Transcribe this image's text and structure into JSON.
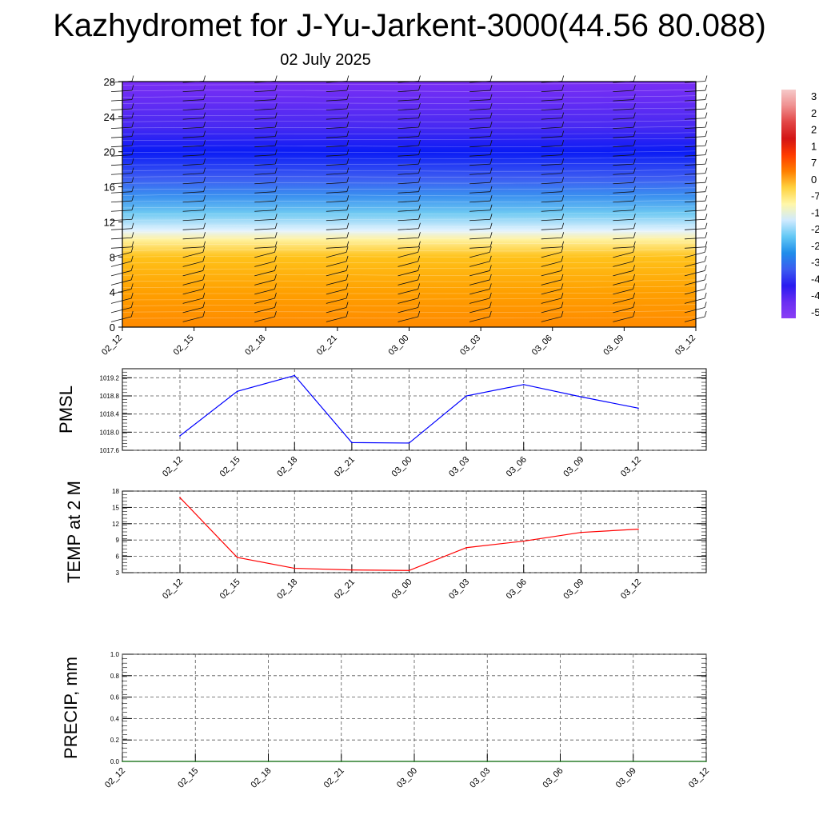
{
  "title": "Kazhydromet for J-Yu-Jarkent-3000(44.56 80.088)",
  "subtitle": "02 July 2025",
  "colors": {
    "pmsl_line": "#0000ff",
    "temp_line": "#ff0000",
    "precip_line": "#006400",
    "grid": "#555555"
  },
  "chart_data": [
    {
      "type": "heatmap",
      "name": "cross-section",
      "x_tick_labels": [
        "02_12",
        "02_15",
        "02_18",
        "02_21",
        "03_00",
        "03_03",
        "03_06",
        "03_09",
        "03_12"
      ],
      "y_ticks": [
        0,
        4,
        8,
        12,
        16,
        20,
        24,
        28
      ],
      "ylim": [
        0,
        28
      ],
      "colorbar_labels": [
        "3",
        "2",
        "2",
        "1",
        "7",
        "0",
        "-7",
        "-1",
        "-2",
        "-2",
        "-3",
        "-4",
        "-4",
        "-5"
      ],
      "colorbar_colors": [
        "#f6c9c9",
        "#ef8f8f",
        "#e24545",
        "#d31515",
        "#ff3b00",
        "#ff7f00",
        "#ffd23f",
        "#fff7a8",
        "#cfeaff",
        "#63c8f5",
        "#1f8dea",
        "#3b5cf0",
        "#2a1bf0",
        "#6a2ef2",
        "#8a3ef5"
      ],
      "heatmap_stops": [
        {
          "y": 0,
          "color": "#ff8a00"
        },
        {
          "y": 4,
          "color": "#ffa000"
        },
        {
          "y": 8,
          "color": "#ffc21a"
        },
        {
          "y": 10,
          "color": "#fff2a0"
        },
        {
          "y": 11,
          "color": "#e4f3ff"
        },
        {
          "y": 13,
          "color": "#6ec9f2"
        },
        {
          "y": 15,
          "color": "#3a8ff0"
        },
        {
          "y": 17,
          "color": "#3d5cf2"
        },
        {
          "y": 20,
          "color": "#0a1bf5"
        },
        {
          "y": 23,
          "color": "#4a2af2"
        },
        {
          "y": 28,
          "color": "#7a2ef5"
        }
      ]
    },
    {
      "type": "line",
      "name": "pmsl",
      "ylabel": "PMSL",
      "x": [
        "02_12",
        "02_15",
        "02_18",
        "02_21",
        "03_00",
        "03_03",
        "03_06",
        "03_09",
        "03_12"
      ],
      "values": [
        1017.92,
        1018.9,
        1019.25,
        1017.77,
        1017.76,
        1018.8,
        1019.05,
        1018.78,
        1018.53
      ],
      "ylim": [
        1017.6,
        1019.4
      ],
      "y_ticks": [
        "1017.6",
        "1018.0",
        "1018.4",
        "1018.8",
        "1019.2"
      ]
    },
    {
      "type": "line",
      "name": "temp",
      "ylabel": "TEMP at 2 M",
      "x": [
        "02_12",
        "02_15",
        "02_18",
        "02_21",
        "03_00",
        "03_03",
        "03_06",
        "03_09",
        "03_12"
      ],
      "values": [
        16.8,
        5.8,
        3.8,
        3.5,
        3.4,
        7.6,
        8.8,
        10.4,
        11.0
      ],
      "ylim": [
        3,
        18
      ],
      "y_ticks": [
        "3",
        "6",
        "9",
        "12",
        "15",
        "18"
      ]
    },
    {
      "type": "line",
      "name": "precip",
      "ylabel": "PRECIP, mm",
      "x": [
        "02_12",
        "02_15",
        "02_18",
        "02_21",
        "03_00",
        "03_03",
        "03_06",
        "03_09",
        "03_12"
      ],
      "values": [
        0,
        0,
        0,
        0,
        0,
        0,
        0,
        0,
        0
      ],
      "ylim": [
        0,
        1
      ],
      "y_ticks": [
        "0.0",
        "0.2",
        "0.4",
        "0.6",
        "0.8",
        "1.0"
      ]
    }
  ]
}
